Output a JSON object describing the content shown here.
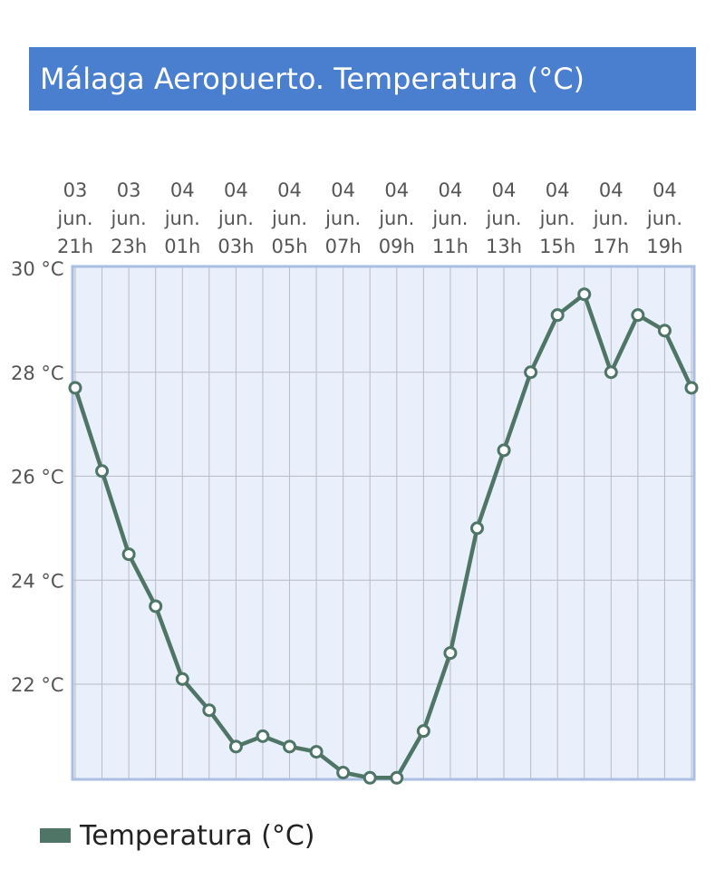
{
  "title": "Málaga Aeropuerto. Temperatura (°C)",
  "colors": {
    "header": "#4a7fd0",
    "plot_bg": "#e9effb",
    "plot_border": "#a9bee0",
    "line": "#4e7565",
    "grid": "#b8bcc4"
  },
  "chart_data": {
    "type": "line",
    "title": "Málaga Aeropuerto. Temperatura (°C)",
    "x_tick_labels": [
      [
        "03",
        "jun.",
        "21h"
      ],
      [
        "03",
        "jun.",
        "23h"
      ],
      [
        "04",
        "jun.",
        "01h"
      ],
      [
        "04",
        "jun.",
        "03h"
      ],
      [
        "04",
        "jun.",
        "05h"
      ],
      [
        "04",
        "jun.",
        "07h"
      ],
      [
        "04",
        "jun.",
        "09h"
      ],
      [
        "04",
        "jun.",
        "11h"
      ],
      [
        "04",
        "jun.",
        "13h"
      ],
      [
        "04",
        "jun.",
        "15h"
      ],
      [
        "04",
        "jun.",
        "17h"
      ],
      [
        "04",
        "jun.",
        "19h"
      ]
    ],
    "x": [
      "03 jun. 21h",
      "03 jun. 22h",
      "03 jun. 23h",
      "04 jun. 00h",
      "04 jun. 01h",
      "04 jun. 02h",
      "04 jun. 03h",
      "04 jun. 04h",
      "04 jun. 05h",
      "04 jun. 06h",
      "04 jun. 07h",
      "04 jun. 08h",
      "04 jun. 09h",
      "04 jun. 10h",
      "04 jun. 11h",
      "04 jun. 12h",
      "04 jun. 13h",
      "04 jun. 14h",
      "04 jun. 15h",
      "04 jun. 16h",
      "04 jun. 17h",
      "04 jun. 18h",
      "04 jun. 19h",
      "04 jun. 20h"
    ],
    "series": [
      {
        "name": "Temperatura (°C)",
        "values": [
          27.7,
          26.1,
          24.5,
          23.5,
          22.1,
          21.5,
          20.8,
          21.0,
          20.8,
          20.7,
          20.3,
          20.2,
          20.2,
          21.1,
          22.6,
          25.0,
          26.5,
          28.0,
          29.1,
          29.5,
          28.0,
          29.1,
          28.8,
          27.7
        ]
      }
    ],
    "y_ticks": [
      "30 °C",
      "28 °C",
      "26 °C",
      "24 °C",
      "22 °C"
    ],
    "ylim": [
      20.2,
      30
    ],
    "grid": true,
    "legend": "bottom-left"
  }
}
